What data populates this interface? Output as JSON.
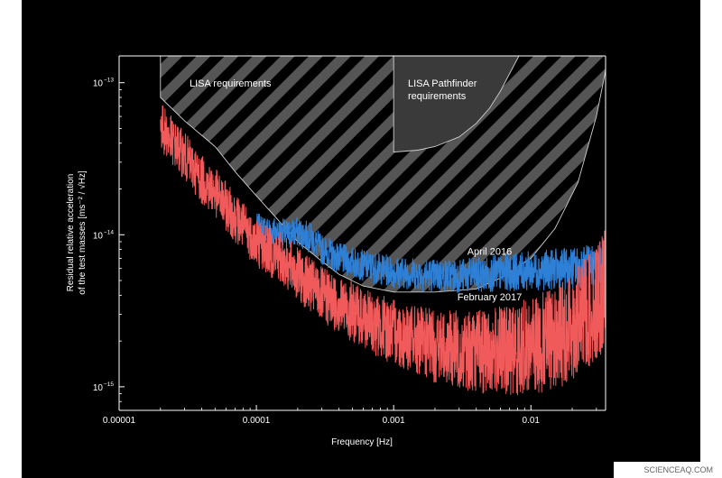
{
  "chart_data": {
    "type": "line",
    "xscale": "log",
    "yscale": "log",
    "xlim": [
      1e-05,
      0.035
    ],
    "ylim": [
      7e-16,
      1.5e-13
    ],
    "xlabel": "Frequency [Hz]",
    "ylabel_line1": "Residual relative acceleration",
    "ylabel_line2": "of the test masses [ms⁻² / √Hz]",
    "xticks": [
      {
        "value": 1e-05,
        "label": "0.00001"
      },
      {
        "value": 0.0001,
        "label": "0.0001"
      },
      {
        "value": 0.001,
        "label": "0.001"
      },
      {
        "value": 0.01,
        "label": "0.01"
      }
    ],
    "yticks": [
      {
        "value": 1e-13,
        "mantissa": "10",
        "exponent": "−13"
      },
      {
        "value": 1e-14,
        "mantissa": "10",
        "exponent": "−14"
      },
      {
        "value": 1e-15,
        "mantissa": "10",
        "exponent": "−15"
      }
    ],
    "regions": [
      {
        "name": "LISA requirements",
        "label": "LISA requirements",
        "fill": "hatched",
        "boundary": [
          [
            2e-05,
            8e-14
          ],
          [
            2e-05,
            1.6e-13
          ],
          [
            0.035,
            1.6e-13
          ],
          [
            0.035,
            1.2e-13
          ],
          [
            0.03,
            6e-14
          ],
          [
            0.022,
            2.2e-14
          ],
          [
            0.015,
            1.1e-14
          ],
          [
            0.01,
            7e-15
          ],
          [
            0.006,
            5.2e-15
          ],
          [
            0.004,
            4.4e-15
          ],
          [
            0.002,
            4.2e-15
          ],
          [
            0.001,
            4.2e-15
          ],
          [
            0.0006,
            4.6e-15
          ],
          [
            0.0004,
            5.5e-15
          ],
          [
            0.0003,
            6.7e-15
          ],
          [
            0.0002,
            9e-15
          ],
          [
            0.00015,
            1.2e-14
          ],
          [
            0.0001,
            1.8e-14
          ],
          [
            7e-05,
            2.6e-14
          ],
          [
            5e-05,
            3.8e-14
          ],
          [
            3e-05,
            5.6e-14
          ],
          [
            2e-05,
            8e-14
          ]
        ]
      },
      {
        "name": "LISA Pathfinder requirements",
        "label_line1": "LISA Pathfinder",
        "label_line2": "requirements",
        "fill": "solid",
        "boundary": [
          [
            0.001,
            1.6e-13
          ],
          [
            0.001,
            3.5e-14
          ],
          [
            0.0015,
            3.6e-14
          ],
          [
            0.002,
            3.8e-14
          ],
          [
            0.003,
            4.4e-14
          ],
          [
            0.004,
            5.4e-14
          ],
          [
            0.005,
            6.8e-14
          ],
          [
            0.006,
            8.8e-14
          ],
          [
            0.007,
            1.15e-13
          ],
          [
            0.0085,
            1.6e-13
          ]
        ]
      }
    ],
    "series": [
      {
        "name": "April 2016",
        "color": "#2e7fd6",
        "anchors": [
          [
            0.0001,
            1.1e-14
          ],
          [
            0.00013,
            1.06e-14
          ],
          [
            0.00017,
            1e-14
          ],
          [
            0.0002,
            1.05e-14
          ],
          [
            0.00025,
            9.5e-15
          ],
          [
            0.0003,
            8e-15
          ],
          [
            0.0004,
            7e-15
          ],
          [
            0.0006,
            6.3e-15
          ],
          [
            0.001,
            5.7e-15
          ],
          [
            0.002,
            5.4e-15
          ],
          [
            0.004,
            5.4e-15
          ],
          [
            0.006,
            5.6e-15
          ],
          [
            0.01,
            5.8e-15
          ],
          [
            0.02,
            6e-15
          ],
          [
            0.035,
            6.5e-15
          ]
        ],
        "jitter_low_freq": 0.1,
        "jitter_high_freq": 0.15
      },
      {
        "name": "February 2017",
        "color": "#f05a5a",
        "anchors": [
          [
            2e-05,
            5.2e-14
          ],
          [
            2.5e-05,
            4e-14
          ],
          [
            3e-05,
            3.3e-14
          ],
          [
            4e-05,
            2.3e-14
          ],
          [
            5e-05,
            1.9e-14
          ],
          [
            7e-05,
            1.3e-14
          ],
          [
            0.0001,
            9e-15
          ],
          [
            0.00015,
            7e-15
          ],
          [
            0.0002,
            5.5e-15
          ],
          [
            0.0003,
            4e-15
          ],
          [
            0.0005,
            3.1e-15
          ],
          [
            0.0007,
            2.6e-15
          ],
          [
            0.001,
            2.3e-15
          ],
          [
            0.0015,
            2e-15
          ],
          [
            0.002,
            1.85e-15
          ],
          [
            0.003,
            1.75e-15
          ],
          [
            0.005,
            1.7e-15
          ],
          [
            0.007,
            1.75e-15
          ],
          [
            0.01,
            1.85e-15
          ],
          [
            0.015,
            2.1e-15
          ],
          [
            0.02,
            2.5e-15
          ],
          [
            0.025,
            3e-15
          ],
          [
            0.03,
            3.6e-15
          ],
          [
            0.035,
            4.5e-15
          ]
        ],
        "jitter_low_freq": 0.16,
        "jitter_high_freq": 0.4
      }
    ],
    "annotations": [
      {
        "text": "April 2016",
        "x": 0.005,
        "y": 7.4e-15
      },
      {
        "text": "February 2017",
        "x": 0.005,
        "y": 3.7e-15
      }
    ],
    "grid": false,
    "legend": "none",
    "background": "#000000",
    "hatch_stripe_color": "#555555",
    "pathfinder_fill": "#3a3a3a"
  },
  "credit": "SCIENCEAQ.COM"
}
